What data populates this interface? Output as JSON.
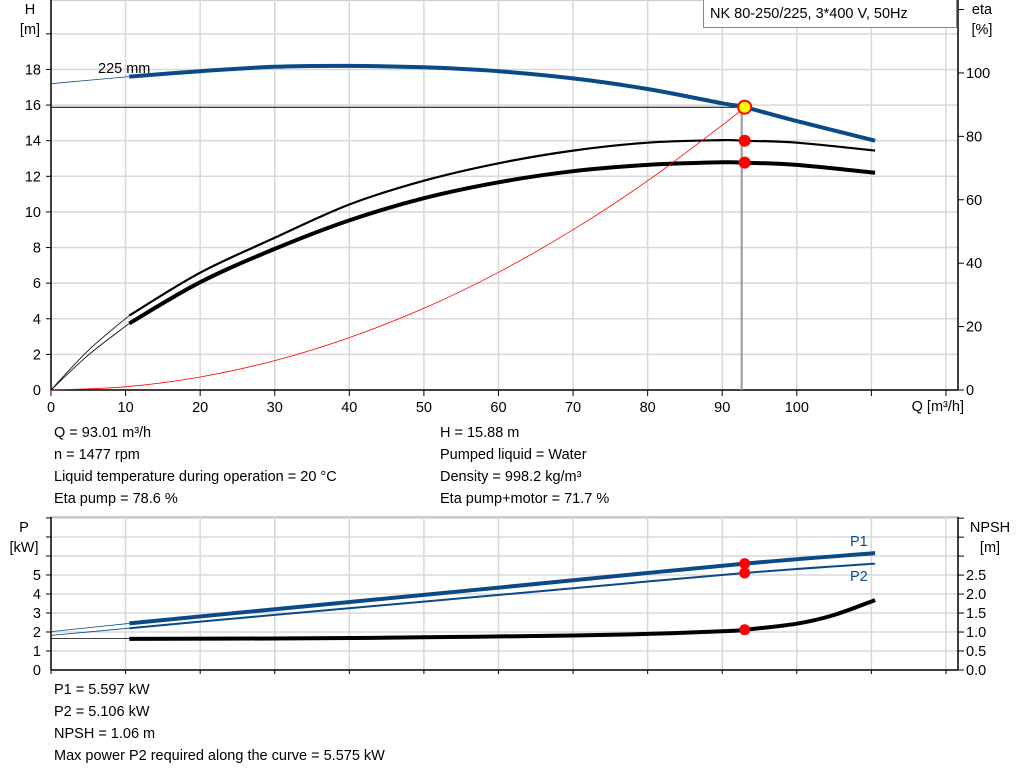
{
  "title": "NK 80-250/225, 3*400 V, 50Hz",
  "colors": {
    "head": "#0b4a86",
    "eta": "#000000",
    "system": "#ff0000",
    "operating_point": "#ffff00",
    "marker": "#ff0000",
    "power": "#0b4a86",
    "npsh": "#000000",
    "grid": "#d8d8d8"
  },
  "chart_data": [
    {
      "type": "line",
      "xlabel": "Q [m³/h]",
      "ylabel": "H",
      "ylabel_unit": "[m]",
      "y2label": "eta",
      "y2label_unit": "[%]",
      "xlim": [
        0,
        120
      ],
      "ylim": [
        0,
        21.9
      ],
      "y2lim": [
        0,
        123
      ],
      "grid": true,
      "x_ticks": [
        "0",
        "10",
        "20",
        "30",
        "40",
        "50",
        "60",
        "70",
        "80",
        "90",
        "100"
      ],
      "y_ticks": [
        "0",
        "2",
        "4",
        "6",
        "8",
        "10",
        "12",
        "14",
        "16",
        "18"
      ],
      "y2_ticks": [
        "0",
        "20",
        "40",
        "60",
        "80",
        "100"
      ],
      "impeller_label": "225 mm",
      "series": [
        {
          "key": "head",
          "axis": "y",
          "x": [
            10.5,
            20,
            30,
            40,
            50,
            60,
            70,
            80,
            90,
            93.01,
            100,
            110.5
          ],
          "y": [
            17.6,
            17.9,
            18.15,
            18.2,
            18.12,
            17.9,
            17.5,
            16.9,
            16.1,
            15.88,
            15.1,
            14.0
          ],
          "extension": {
            "x": [
              0,
              10.5
            ],
            "y": [
              17.2,
              17.6
            ]
          }
        },
        {
          "key": "eta_pump",
          "axis": "y2",
          "x": [
            10.5,
            20,
            30,
            40,
            50,
            60,
            70,
            80,
            90,
            93.01,
            100,
            110.5
          ],
          "y": [
            23.5,
            37,
            48,
            58.5,
            66,
            71.5,
            75.5,
            78,
            78.8,
            78.6,
            78,
            75.5
          ],
          "extension": {
            "x": [
              0,
              5,
              10.5
            ],
            "y": [
              0,
              12.5,
              23.5
            ]
          }
        },
        {
          "key": "eta_pump_motor",
          "axis": "y2",
          "x": [
            10.5,
            20,
            30,
            40,
            50,
            60,
            70,
            80,
            90,
            93.01,
            100,
            110.5
          ],
          "y": [
            21,
            34,
            44.5,
            53.5,
            60.5,
            65.5,
            69,
            71,
            71.8,
            71.7,
            71,
            68.5
          ],
          "extension": {
            "x": [
              0,
              5,
              10.5
            ],
            "y": [
              0,
              11,
              21
            ]
          }
        },
        {
          "key": "system",
          "axis": "y",
          "x": [
            0,
            10,
            20,
            30,
            40,
            50,
            60,
            70,
            80,
            90,
            93.01
          ],
          "y": [
            0,
            0.18,
            0.73,
            1.65,
            2.94,
            4.59,
            6.61,
            9.0,
            11.75,
            14.87,
            15.88
          ]
        }
      ],
      "operating_point": {
        "Q": 93.01,
        "H": 15.88,
        "eta_pump": 78.6,
        "eta_pump_motor": 71.7
      }
    },
    {
      "type": "line",
      "ylabel": "P",
      "ylabel_unit": "[kW]",
      "y2label": "NPSH",
      "y2label_unit": "[m]",
      "xlim": [
        0,
        120
      ],
      "ylim": [
        0,
        8.05
      ],
      "y2lim": [
        0,
        4.03
      ],
      "grid": true,
      "y_ticks": [
        "0",
        "1",
        "2",
        "3",
        "4",
        "5"
      ],
      "y2_ticks": [
        "0.0",
        "0.5",
        "1.0",
        "1.5",
        "2.0",
        "2.5"
      ],
      "series": [
        {
          "key": "P1",
          "name": "P1",
          "axis": "y",
          "x": [
            10.5,
            30,
            50,
            70,
            93.01,
            110.5
          ],
          "y": [
            2.45,
            3.2,
            3.95,
            4.72,
            5.597,
            6.15
          ],
          "extension": {
            "x": [
              0,
              10.5
            ],
            "y": [
              2.02,
              2.45
            ]
          }
        },
        {
          "key": "P2",
          "name": "P2",
          "axis": "y",
          "x": [
            10.5,
            30,
            50,
            70,
            93.01,
            110.5
          ],
          "y": [
            2.2,
            2.9,
            3.6,
            4.3,
            5.106,
            5.6
          ],
          "extension": {
            "x": [
              0,
              10.5
            ],
            "y": [
              1.82,
              2.2
            ]
          }
        },
        {
          "key": "NPSH",
          "axis": "y2",
          "x": [
            10.5,
            30,
            50,
            70,
            80,
            90,
            93.01,
            100,
            105,
            110.5
          ],
          "y": [
            0.82,
            0.83,
            0.86,
            0.91,
            0.95,
            1.02,
            1.06,
            1.22,
            1.45,
            1.84
          ],
          "extension": {
            "x": [
              0,
              10.5
            ],
            "y": [
              0.83,
              0.83
            ]
          }
        }
      ],
      "operating_point": {
        "Q": 93.01,
        "P1": 5.597,
        "P2": 5.106,
        "NPSH": 1.06
      }
    }
  ],
  "info_top": {
    "q": "Q = 93.01 m³/h",
    "n": "n = 1477 rpm",
    "temp": "Liquid temperature during operation = 20 °C",
    "eta_pump": "Eta pump = 78.6 %",
    "h": "H = 15.88 m",
    "liquid": "Pumped liquid = Water",
    "density": "Density = 998.2 kg/m³",
    "eta_pm": "Eta pump+motor = 71.7 %"
  },
  "info_bottom": {
    "p1": "P1 = 5.597 kW",
    "p2": "P2 = 5.106 kW",
    "npsh": "NPSH = 1.06 m",
    "max": "Max power P2 required along the curve = 5.575 kW"
  }
}
